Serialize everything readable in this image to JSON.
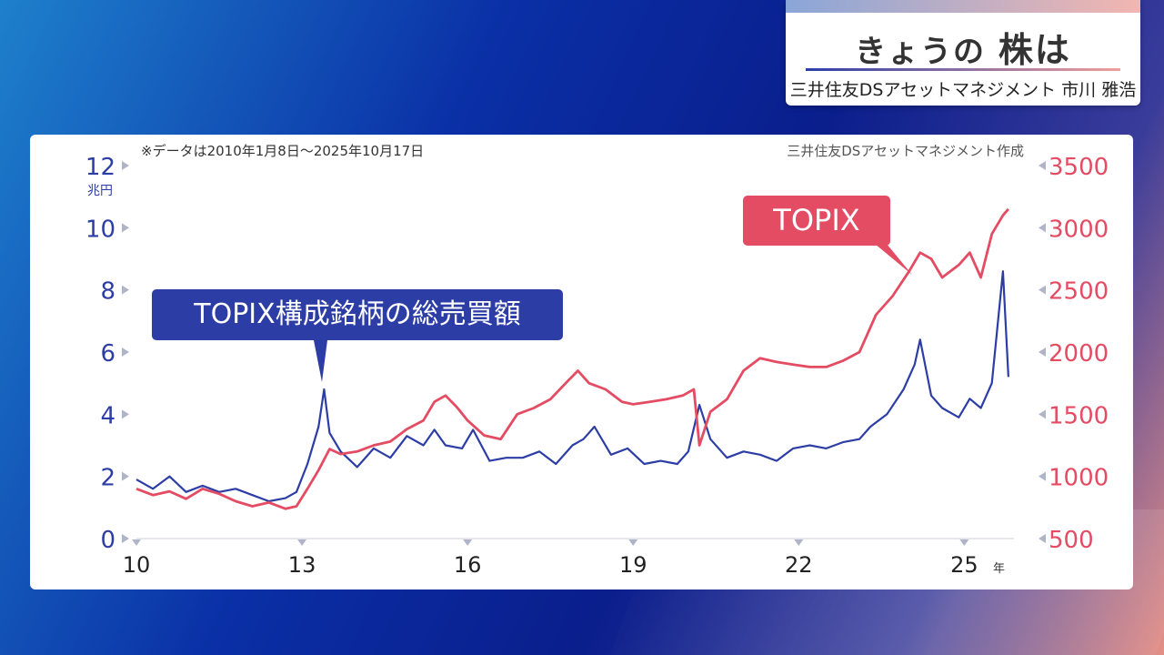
{
  "header": {
    "title_prefix": "きょうの",
    "title_main": "株は",
    "subtitle": "三井住友DSアセットマネジメント 市川 雅浩"
  },
  "notes": {
    "period": "※データは2010年1月8日～2025年10月17日",
    "source": "三井住友DSアセットマネジメント作成"
  },
  "callouts": {
    "volume_label": "TOPIX構成銘柄の総売買額",
    "topix_label": "TOPIX"
  },
  "colors": {
    "volume": "#2c3da6",
    "topix": "#e34c63",
    "left_axis_text": "#2c3da6",
    "right_axis_text": "#e34c63"
  },
  "chart_data": {
    "type": "line",
    "x_label_unit": "年",
    "y_left_unit": "兆円",
    "x_ticks": [
      "10",
      "13",
      "16",
      "19",
      "22",
      "25"
    ],
    "x_range": [
      2010.0,
      2025.9
    ],
    "y_left_ticks": [
      "0",
      "2",
      "4",
      "6",
      "8",
      "10",
      "12"
    ],
    "y_left_range": [
      0,
      12
    ],
    "y_right_ticks": [
      "500",
      "1000",
      "1500",
      "2000",
      "2500",
      "3000",
      "3500"
    ],
    "y_right_range": [
      500,
      3500
    ],
    "series": [
      {
        "name": "TOPIX構成銘柄の総売買額",
        "axis": "left",
        "x": [
          2010.0,
          2010.3,
          2010.6,
          2010.9,
          2011.2,
          2011.5,
          2011.8,
          2012.1,
          2012.4,
          2012.7,
          2012.9,
          2013.1,
          2013.3,
          2013.4,
          2013.5,
          2013.7,
          2014.0,
          2014.3,
          2014.6,
          2014.9,
          2015.2,
          2015.4,
          2015.6,
          2015.9,
          2016.1,
          2016.4,
          2016.7,
          2017.0,
          2017.3,
          2017.6,
          2017.9,
          2018.1,
          2018.3,
          2018.6,
          2018.9,
          2019.2,
          2019.5,
          2019.8,
          2020.0,
          2020.2,
          2020.4,
          2020.7,
          2021.0,
          2021.3,
          2021.6,
          2021.9,
          2022.2,
          2022.5,
          2022.8,
          2023.1,
          2023.3,
          2023.6,
          2023.9,
          2024.1,
          2024.2,
          2024.4,
          2024.6,
          2024.9,
          2025.1,
          2025.3,
          2025.5,
          2025.7,
          2025.8
        ],
        "values": [
          1.9,
          1.6,
          2.0,
          1.5,
          1.7,
          1.5,
          1.6,
          1.4,
          1.2,
          1.3,
          1.5,
          2.4,
          3.6,
          4.8,
          3.4,
          2.8,
          2.3,
          2.9,
          2.6,
          3.3,
          3.0,
          3.5,
          3.0,
          2.9,
          3.5,
          2.5,
          2.6,
          2.6,
          2.8,
          2.4,
          3.0,
          3.2,
          3.6,
          2.7,
          2.9,
          2.4,
          2.5,
          2.4,
          2.8,
          4.3,
          3.2,
          2.6,
          2.8,
          2.7,
          2.5,
          2.9,
          3.0,
          2.9,
          3.1,
          3.2,
          3.6,
          4.0,
          4.8,
          5.6,
          6.4,
          4.6,
          4.2,
          3.9,
          4.5,
          4.2,
          5.0,
          8.6,
          5.2
        ]
      },
      {
        "name": "TOPIX",
        "axis": "right",
        "x": [
          2010.0,
          2010.3,
          2010.6,
          2010.9,
          2011.2,
          2011.5,
          2011.8,
          2012.1,
          2012.4,
          2012.7,
          2012.9,
          2013.1,
          2013.3,
          2013.5,
          2013.7,
          2014.0,
          2014.3,
          2014.6,
          2014.9,
          2015.2,
          2015.4,
          2015.6,
          2015.8,
          2016.0,
          2016.3,
          2016.6,
          2016.9,
          2017.2,
          2017.5,
          2017.8,
          2018.0,
          2018.2,
          2018.5,
          2018.8,
          2019.0,
          2019.3,
          2019.6,
          2019.9,
          2020.1,
          2020.2,
          2020.4,
          2020.7,
          2021.0,
          2021.3,
          2021.6,
          2021.9,
          2022.2,
          2022.5,
          2022.8,
          2023.1,
          2023.4,
          2023.7,
          2024.0,
          2024.2,
          2024.4,
          2024.6,
          2024.9,
          2025.1,
          2025.3,
          2025.5,
          2025.7,
          2025.8
        ],
        "values": [
          900,
          850,
          880,
          820,
          900,
          860,
          800,
          760,
          790,
          740,
          760,
          900,
          1050,
          1220,
          1180,
          1200,
          1250,
          1280,
          1380,
          1450,
          1600,
          1650,
          1560,
          1450,
          1330,
          1300,
          1500,
          1550,
          1620,
          1760,
          1850,
          1750,
          1700,
          1600,
          1580,
          1600,
          1620,
          1650,
          1700,
          1250,
          1520,
          1620,
          1850,
          1950,
          1920,
          1900,
          1880,
          1880,
          1930,
          2000,
          2300,
          2450,
          2650,
          2800,
          2750,
          2600,
          2700,
          2800,
          2600,
          2950,
          3100,
          3150
        ]
      }
    ]
  }
}
